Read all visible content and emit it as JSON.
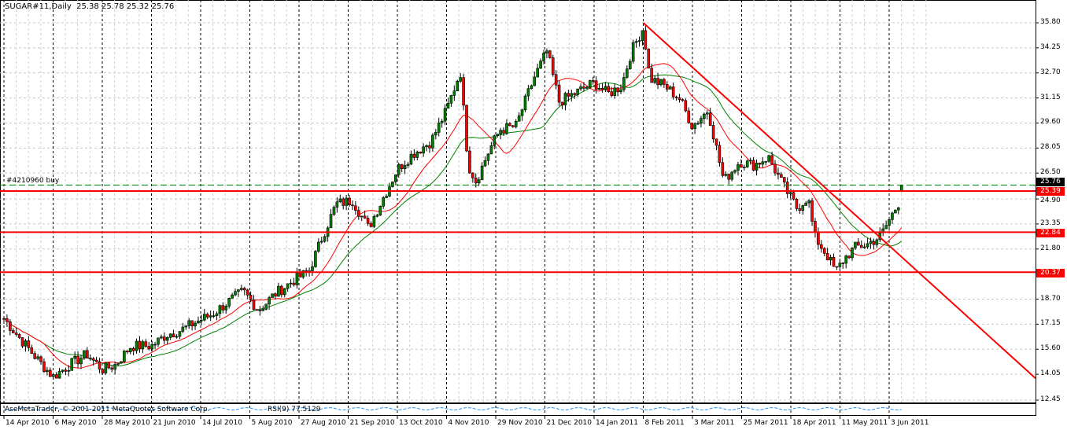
{
  "header": {
    "symbol": "SUGAR#11,Daily",
    "ohlc": "25.38 25.78 25.32 25.76"
  },
  "order_label": "#4210960 buy",
  "footer": {
    "copyright": "AseMetaTrader, © 2001-2011 MetaQuotes Software Corp.",
    "indicator": "RSI(9) 77.5129"
  },
  "colors": {
    "background": "#ffffff",
    "bull_candle": "#008000",
    "bear_candle": "#ff0000",
    "fast_ma": "#ff0000",
    "slow_ma": "#008000",
    "levels": "#ff0000",
    "order_line": "#008000",
    "indicator_line": "#1e90ff"
  },
  "chart_data": {
    "type": "candlestick",
    "title": "SUGAR#11,Daily",
    "ylim": [
      12.45,
      35.8
    ],
    "y_ticks": [
      "35.80",
      "34.25",
      "32.70",
      "31.15",
      "29.60",
      "28.05",
      "26.50",
      "24.90",
      "23.35",
      "21.80",
      "18.70",
      "17.15",
      "15.60",
      "14.05",
      "12.45"
    ],
    "x_ticks": [
      "14 Apr 2010",
      "6 May 2010",
      "28 May 2010",
      "21 Jun 2010",
      "14 Jul 2010",
      "5 Aug 2010",
      "27 Aug 2010",
      "21 Sep 2010",
      "13 Oct 2010",
      "4 Nov 2010",
      "29 Nov 2010",
      "21 Dec 2010",
      "14 Jan 2011",
      "8 Feb 2011",
      "3 Mar 2011",
      "25 Mar 2011",
      "18 Apr 2011",
      "11 May 2011",
      "3 Jun 2011"
    ],
    "grid": true,
    "current_price": "25.76",
    "last_bar": {
      "open": 25.38,
      "high": 25.78,
      "low": 25.32,
      "close": 25.76
    },
    "horizontal_levels": [
      "25.39",
      "22.84",
      "20.37"
    ],
    "order_level": 25.76,
    "trendline": {
      "from": {
        "date": "2011-02-08",
        "price": 35.8
      },
      "to": {
        "date": "2011-06-30",
        "price": 13.8
      }
    },
    "moving_averages": [
      "fast (red)",
      "slow (green)"
    ],
    "approx_closes": [
      [
        "2010-04-14",
        17.5
      ],
      [
        "2010-04-21",
        16.3
      ],
      [
        "2010-04-30",
        14.8
      ],
      [
        "2010-05-06",
        13.9
      ],
      [
        "2010-05-13",
        14.6
      ],
      [
        "2010-05-21",
        15.3
      ],
      [
        "2010-05-28",
        14.35
      ],
      [
        "2010-06-03",
        14.6
      ],
      [
        "2010-06-11",
        15.8
      ],
      [
        "2010-06-21",
        15.8
      ],
      [
        "2010-06-28",
        16.5
      ],
      [
        "2010-07-05",
        16.8
      ],
      [
        "2010-07-12",
        17.3
      ],
      [
        "2010-07-19",
        17.75
      ],
      [
        "2010-07-26",
        18.5
      ],
      [
        "2010-08-02",
        19.2
      ],
      [
        "2010-08-09",
        18.0
      ],
      [
        "2010-08-16",
        19.0
      ],
      [
        "2010-08-25",
        19.9
      ],
      [
        "2010-09-01",
        20.4
      ],
      [
        "2010-09-08",
        22.6
      ],
      [
        "2010-09-15",
        24.6
      ],
      [
        "2010-09-23",
        24.8
      ],
      [
        "2010-09-30",
        23.1
      ],
      [
        "2010-10-13",
        26.75
      ],
      [
        "2010-10-20",
        27.7
      ],
      [
        "2010-10-28",
        28.45
      ],
      [
        "2010-11-04",
        30.4
      ],
      [
        "2010-11-11",
        32.8
      ],
      [
        "2010-11-15",
        27.0
      ],
      [
        "2010-11-19",
        26.0
      ],
      [
        "2010-11-26",
        28.0
      ],
      [
        "2010-12-01",
        29.2
      ],
      [
        "2010-12-08",
        29.4
      ],
      [
        "2010-12-16",
        32.35
      ],
      [
        "2010-12-22",
        34.05
      ],
      [
        "2010-12-28",
        30.9
      ],
      [
        "2011-01-14",
        32.1
      ],
      [
        "2011-01-21",
        31.4
      ],
      [
        "2011-01-28",
        31.9
      ],
      [
        "2011-02-02",
        34.05
      ],
      [
        "2011-02-08",
        35.5
      ],
      [
        "2011-02-11",
        32.35
      ],
      [
        "2011-02-18",
        31.9
      ],
      [
        "2011-02-25",
        31.1
      ],
      [
        "2011-03-03",
        29.4
      ],
      [
        "2011-03-10",
        30.4
      ],
      [
        "2011-03-17",
        26.0
      ],
      [
        "2011-03-24",
        27.2
      ],
      [
        "2011-03-31",
        27.0
      ],
      [
        "2011-04-07",
        27.5
      ],
      [
        "2011-04-14",
        25.8
      ],
      [
        "2011-04-21",
        24.3
      ],
      [
        "2011-04-26",
        25.05
      ],
      [
        "2011-04-29",
        22.6
      ],
      [
        "2011-05-05",
        21.4
      ],
      [
        "2011-05-09",
        20.4
      ],
      [
        "2011-05-13",
        21.2
      ],
      [
        "2011-05-18",
        21.9
      ],
      [
        "2011-05-24",
        22.1
      ],
      [
        "2011-05-30",
        22.6
      ],
      [
        "2011-06-03",
        23.6
      ],
      [
        "2011-06-08",
        24.8
      ],
      [
        "2011-06-10",
        25.76
      ]
    ]
  }
}
